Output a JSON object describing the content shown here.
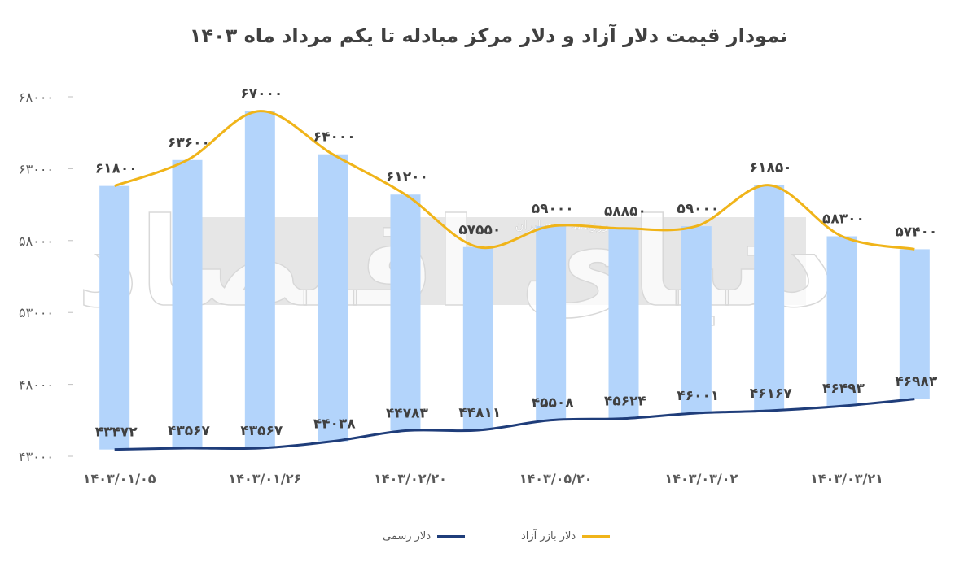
{
  "chart_data": {
    "type": "bar+line",
    "title": "نمودار قیمت دلار آزاد و دلار مرکز مبادله تا یکم مرداد ماه ۱۴۰۳",
    "y_ticks": [
      "۶۸۰۰۰",
      "۶۳۰۰۰",
      "۵۸۰۰۰",
      "۵۳۰۰۰",
      "۴۸۰۰۰",
      "۴۳۰۰۰"
    ],
    "ylim": [
      43000,
      68000
    ],
    "x_tick_labels": [
      "۱۴۰۳/۰۱/۰۵",
      "",
      "۱۴۰۳/۰۱/۲۶",
      "",
      "۱۴۰۳/۰۲/۲۰",
      "",
      "۱۴۰۳/۰۵/۲۰",
      "",
      "۱۴۰۳/۰۳/۰۲",
      "",
      "۱۴۰۳/۰۳/۲۱",
      ""
    ],
    "free_market": {
      "name": "دلار بازر آزاد",
      "color": "#f0b419",
      "values": [
        61800,
        63600,
        67000,
        64000,
        61200,
        57550,
        59000,
        58850,
        59000,
        61850,
        58300,
        57400
      ],
      "labels": [
        "۶۱۸۰۰",
        "۶۳۶۰۰",
        "۶۷۰۰۰",
        "۶۴۰۰۰",
        "۶۱۲۰۰",
        "۵۷۵۵۰",
        "۵۹۰۰۰",
        "۵۸۸۵۰",
        "۵۹۰۰۰",
        "۶۱۸۵۰",
        "۵۸۳۰۰",
        "۵۷۴۰۰"
      ]
    },
    "official": {
      "name": "دلار رسمی",
      "color": "#1f3d7a",
      "values": [
        43472,
        43567,
        43567,
        44038,
        44783,
        44811,
        45508,
        45624,
        46001,
        46167,
        46493,
        46983
      ],
      "labels": [
        "۴۳۴۷۲",
        "۴۳۵۶۷",
        "۴۳۵۶۷",
        "۴۴۰۳۸",
        "۴۴۷۸۳",
        "۴۴۸۱۱",
        "۴۵۵۰۸",
        "۴۵۶۲۴",
        "۴۶۰۰۱",
        "۴۶۱۶۷",
        "۴۶۴۹۳",
        "۴۶۹۸۳"
      ]
    },
    "bar_color": "#b3d4fb",
    "grid": false,
    "legend_position": "bottom"
  },
  "watermark": {
    "brand": "دنیای اقتصاد",
    "tagline": "روزنامه صبح ایران"
  }
}
